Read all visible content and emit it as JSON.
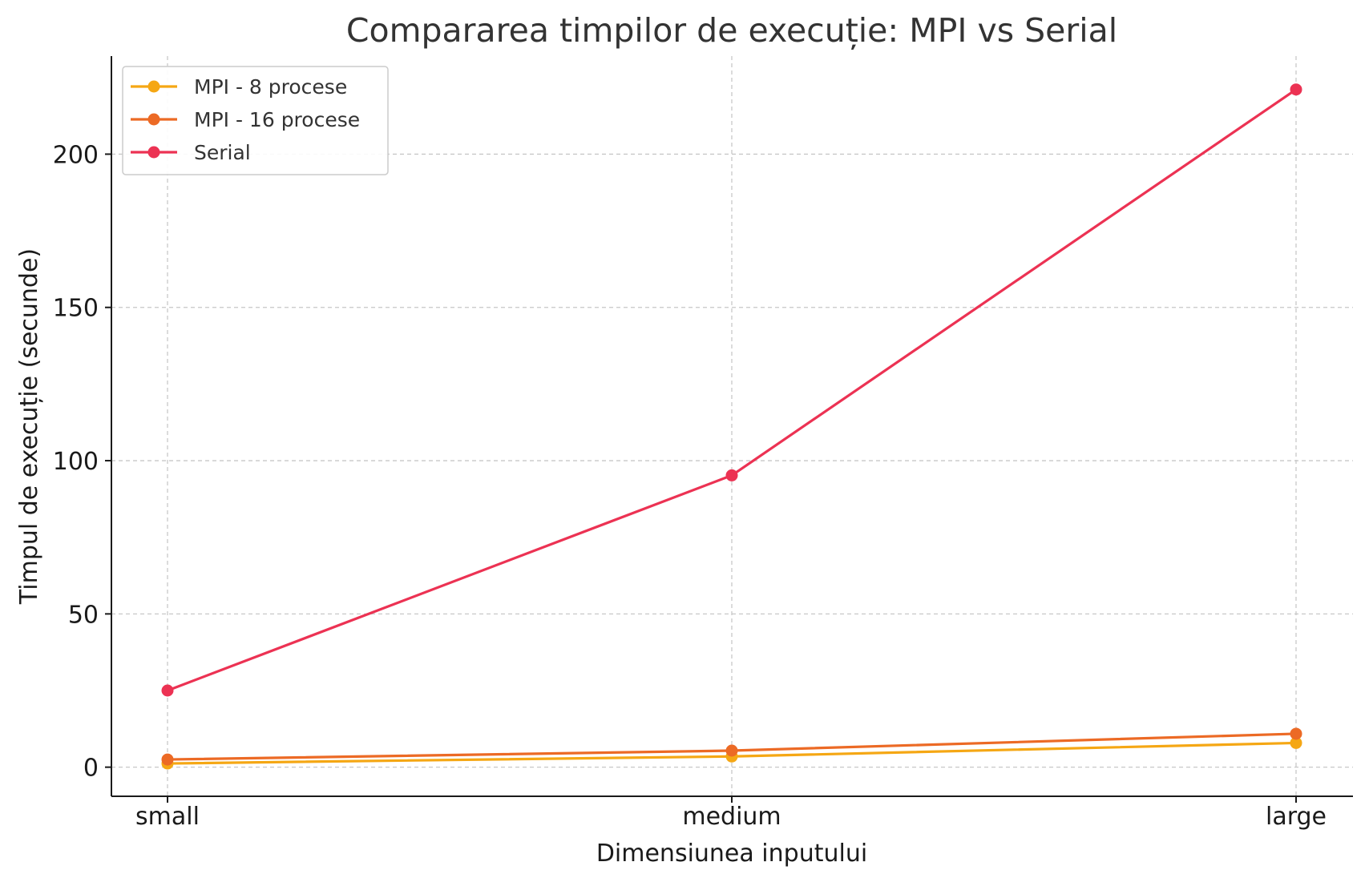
{
  "chart_data": {
    "type": "line",
    "title": "Compararea timpilor de execuție: MPI vs Serial",
    "xlabel": "Dimensiunea inputului",
    "ylabel": "Timpul de execuție (secunde)",
    "categories": [
      "small",
      "medium",
      "large"
    ],
    "yticks": [
      0,
      50,
      100,
      150,
      200
    ],
    "ylim": [
      -9.5,
      232
    ],
    "grid": true,
    "legend_position": "top-left",
    "series": [
      {
        "name": "MPI - 8 procese",
        "values": [
          1.2,
          3.5,
          7.9
        ],
        "color": "#f5a714"
      },
      {
        "name": "MPI - 16 procese",
        "values": [
          2.5,
          5.4,
          10.9
        ],
        "color": "#ec6a25"
      },
      {
        "name": "Serial",
        "values": [
          25.0,
          95.2,
          221.1
        ],
        "color": "#ec3253"
      }
    ]
  }
}
